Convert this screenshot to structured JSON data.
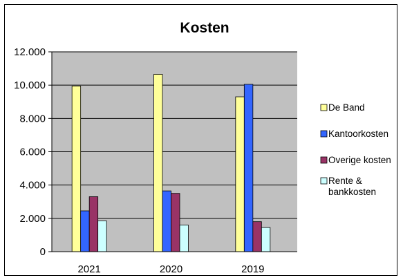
{
  "chart_data": {
    "type": "bar",
    "title": "Kosten",
    "xlabel": "",
    "ylabel": "",
    "categories": [
      "2021",
      "2020",
      "2019"
    ],
    "ylim": [
      0,
      12000
    ],
    "y_tick_labels": [
      "0",
      "2.000",
      "4.000",
      "6.000",
      "8.000",
      "10.000",
      "12.000"
    ],
    "grid": true,
    "legend_position": "right",
    "series": [
      {
        "name": "De Band",
        "color": "#ffff99",
        "values": [
          9950,
          10650,
          9300
        ]
      },
      {
        "name": "Kantoorkosten",
        "color": "#3366ff",
        "values": [
          2450,
          3650,
          10050
        ]
      },
      {
        "name": "Overige kosten",
        "color": "#993366",
        "values": [
          3300,
          3500,
          1800
        ]
      },
      {
        "name": "Rente & bankkosten",
        "legend_lines": [
          "Rente &",
          "bankkosten"
        ],
        "color": "#ccffff",
        "values": [
          1850,
          1600,
          1450
        ]
      }
    ]
  }
}
